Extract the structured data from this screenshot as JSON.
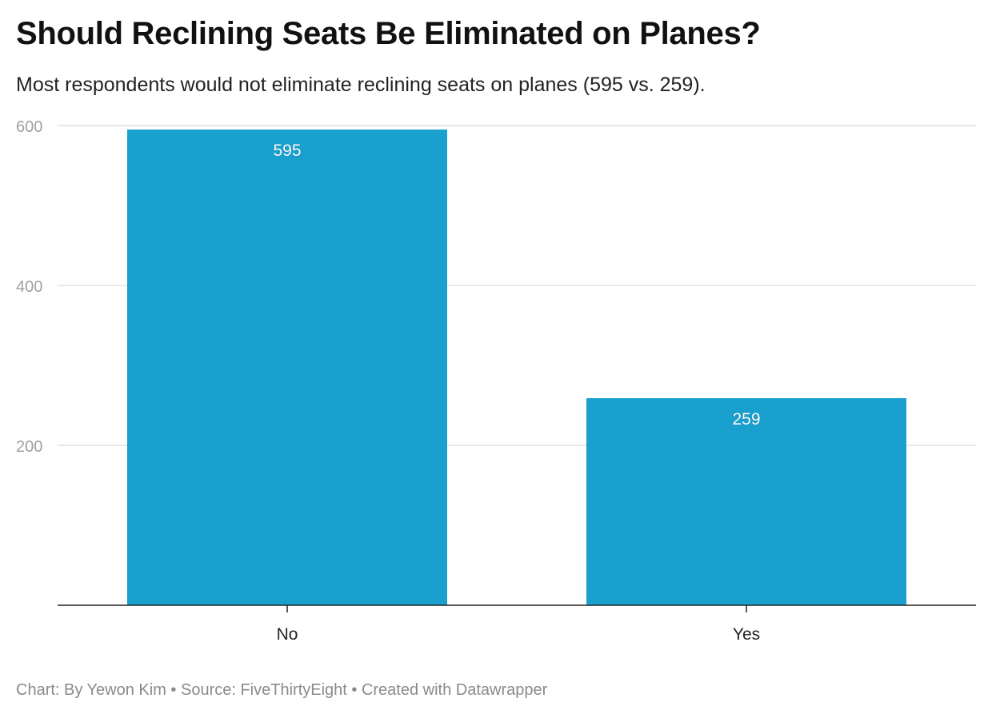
{
  "chart_data": {
    "type": "bar",
    "title": "Should Reclining Seats Be Eliminated on Planes?",
    "subtitle": "Most respondents would not eliminate reclining seats on planes (595 vs. 259).",
    "categories": [
      "No",
      "Yes"
    ],
    "values": [
      595,
      259
    ],
    "data_labels": [
      "595",
      "259"
    ],
    "xlabel": "",
    "ylabel": "",
    "ylim": [
      0,
      600
    ],
    "yticks": [
      200,
      400,
      600
    ],
    "ytick_labels": [
      "200",
      "400",
      "600"
    ],
    "grid": true,
    "bar_color": "#19a0ce"
  },
  "footer": {
    "text": "Chart: By Yewon Kim • Source: FiveThirtyEight • Created with Datawrapper"
  }
}
